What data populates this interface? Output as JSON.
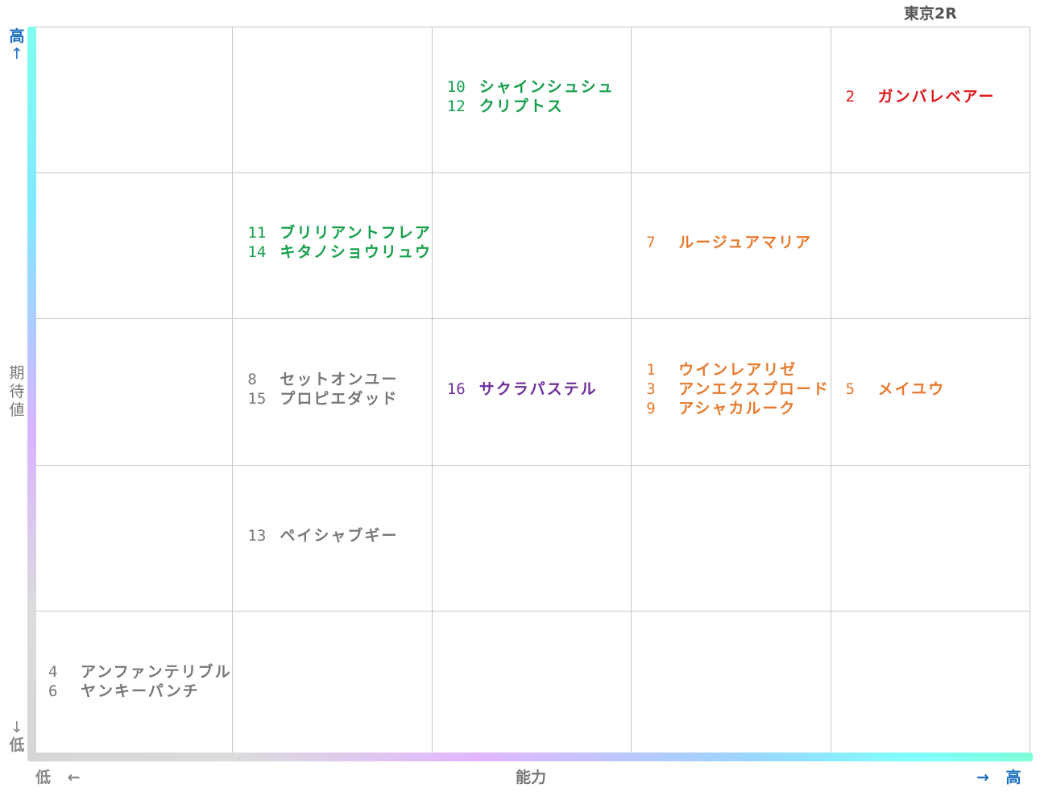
{
  "title": "東京2R",
  "colors": {
    "green": "#14a04a",
    "red": "#e0161a",
    "orange": "#e87a2c",
    "purple": "#6e2d9a",
    "gray": "#777777",
    "axis_blue": "#1b6fc2",
    "gridline": "#c8c8c8"
  },
  "axes": {
    "y": {
      "label": "期待値",
      "high": "高",
      "high_arrow": "↑",
      "low": "低",
      "low_arrow": "↓"
    },
    "x": {
      "label": "能力",
      "low": "低",
      "low_arrow": "←",
      "high": "高",
      "high_arrow": "→"
    }
  },
  "chart_data": {
    "type": "table",
    "title": "東京2R",
    "xlabel": "能力",
    "ylabel": "期待値",
    "columns": 5,
    "rows": 5,
    "scale_note_x": [
      "低",
      "高"
    ],
    "scale_note_y": [
      "高",
      "低"
    ],
    "cells": [
      {
        "row": 0,
        "col": 2,
        "color": "green",
        "horses": [
          {
            "num": "10",
            "name": "シャインシュシュ"
          },
          {
            "num": "12",
            "name": "クリプトス"
          }
        ]
      },
      {
        "row": 0,
        "col": 4,
        "color": "red",
        "horses": [
          {
            "num": "2",
            "name": "ガンバレベアー"
          }
        ]
      },
      {
        "row": 1,
        "col": 1,
        "color": "green",
        "horses": [
          {
            "num": "11",
            "name": "ブリリアントフレア"
          },
          {
            "num": "14",
            "name": "キタノショウリュウ"
          }
        ]
      },
      {
        "row": 1,
        "col": 3,
        "color": "orange",
        "horses": [
          {
            "num": "7",
            "name": "ルージュアマリア"
          }
        ]
      },
      {
        "row": 2,
        "col": 1,
        "color": "gray",
        "horses": [
          {
            "num": "8",
            "name": "セットオンユー"
          },
          {
            "num": "15",
            "name": "プロピエダッド"
          }
        ]
      },
      {
        "row": 2,
        "col": 2,
        "color": "purple",
        "horses": [
          {
            "num": "16",
            "name": "サクラパステル"
          }
        ]
      },
      {
        "row": 2,
        "col": 3,
        "color": "orange",
        "horses": [
          {
            "num": "1",
            "name": "ウインレアリゼ"
          },
          {
            "num": "3",
            "name": "アンエクスプロード"
          },
          {
            "num": "9",
            "name": "アシャカルーク"
          }
        ]
      },
      {
        "row": 2,
        "col": 4,
        "color": "orange",
        "horses": [
          {
            "num": "5",
            "name": "メイユウ"
          }
        ]
      },
      {
        "row": 3,
        "col": 1,
        "color": "gray",
        "horses": [
          {
            "num": "13",
            "name": "ペイシャブギー"
          }
        ]
      },
      {
        "row": 4,
        "col": 0,
        "color": "gray",
        "horses": [
          {
            "num": "4",
            "name": "アンファンテリブル"
          },
          {
            "num": "6",
            "name": "ヤンキーパンチ"
          }
        ]
      }
    ]
  }
}
